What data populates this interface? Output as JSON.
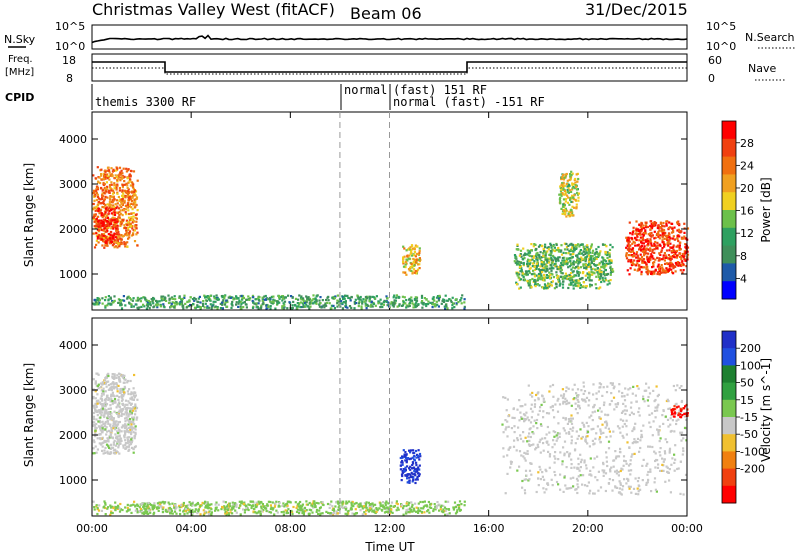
{
  "header": {
    "station": "Christmas Valley West (fitACF)",
    "beam": "Beam 06",
    "date": "31/Dec/2015"
  },
  "strip_labels": {
    "nsky": "N.Sky",
    "nsky_tick_hi": "10^5",
    "nsky_tick_lo": "10^0",
    "nsearch": "N.Search",
    "nsearch_tick_hi": "10^5",
    "nsearch_tick_lo": "10^0",
    "freq_line1": "Freq.",
    "freq_line2": "[MHz]",
    "freq_tick_hi": "18",
    "freq_tick_lo": "8",
    "nave": "Nave",
    "nave_tick_hi": "60",
    "nave_tick_lo": "0",
    "cpid": "CPID"
  },
  "cpid_segments": [
    {
      "start_hour": 0,
      "label": "themis 3300 RF"
    },
    {
      "start_hour": 10,
      "label": "normal"
    },
    {
      "start_hour": 12,
      "label": "(fast) 151 RF"
    },
    {
      "start_hour": 12,
      "label": "normal (fast) -151 RF"
    }
  ],
  "chart_data": [
    {
      "type": "heatmap",
      "panel": "power",
      "ylabel": "Slant Range [km]",
      "ylim": [
        200,
        4600
      ],
      "y_ticks": [
        "1000",
        "2000",
        "3000",
        "4000"
      ],
      "x_ticks": [
        "00:00",
        "04:00",
        "08:00",
        "12:00",
        "16:00",
        "20:00",
        "00:00"
      ],
      "xlim_hours": [
        0,
        24
      ],
      "colorbar": {
        "label": "Power [dB]",
        "ticks": [
          "4",
          "8",
          "12",
          "16",
          "20",
          "24",
          "28"
        ],
        "range": [
          0,
          30
        ],
        "colors": [
          "#0000ff",
          "#1e5aa8",
          "#3f8f5a",
          "#2ea060",
          "#6cc04a",
          "#f0d020",
          "#f0a020",
          "#f07010",
          "#f04010",
          "#ff0000"
        ]
      },
      "regions": [
        {
          "hours": [
            0.0,
            1.8
          ],
          "range_km": [
            1600,
            3400
          ],
          "power_db": 22
        },
        {
          "hours": [
            0.1,
            1.0
          ],
          "range_km": [
            1700,
            2500
          ],
          "power_db": 28
        },
        {
          "hours": [
            12.5,
            13.2
          ],
          "range_km": [
            1000,
            1700
          ],
          "power_db": 18
        },
        {
          "hours": [
            18.8,
            19.6
          ],
          "range_km": [
            2300,
            3300
          ],
          "power_db": 16
        },
        {
          "hours": [
            21.5,
            24.0
          ],
          "range_km": [
            1000,
            2200
          ],
          "power_db": 26
        },
        {
          "hours": [
            17.0,
            21.0
          ],
          "range_km": [
            700,
            1700
          ],
          "power_db": 12
        },
        {
          "hours": [
            0.0,
            15.0
          ],
          "range_km": [
            250,
            550
          ],
          "power_db": 10
        }
      ]
    },
    {
      "type": "heatmap",
      "panel": "velocity",
      "ylabel": "Slant Range [km]",
      "ylim": [
        200,
        4600
      ],
      "y_ticks": [
        "1000",
        "2000",
        "3000",
        "4000"
      ],
      "x_ticks": [
        "00:00",
        "04:00",
        "08:00",
        "12:00",
        "16:00",
        "20:00",
        "00:00"
      ],
      "xlabel": "Time UT",
      "xlim_hours": [
        0,
        24
      ],
      "colorbar": {
        "label": "Velocity [m s^-1]",
        "ticks": [
          "200",
          "100",
          "50",
          "15",
          "-15",
          "-50",
          "-100",
          "-200"
        ],
        "colors": [
          "#2030c8",
          "#2050e0",
          "#1e8030",
          "#30a040",
          "#7ac850",
          "#c8c8c8",
          "#f0c030",
          "#f08010",
          "#f04010",
          "#ff0000"
        ]
      },
      "regions": [
        {
          "hours": [
            0.0,
            1.8
          ],
          "range_km": [
            1600,
            3400
          ],
          "velocity_ms": 0
        },
        {
          "hours": [
            12.4,
            13.2
          ],
          "range_km": [
            950,
            1700
          ],
          "velocity_ms": 200
        },
        {
          "hours": [
            16.5,
            24.0
          ],
          "range_km": [
            700,
            3200
          ],
          "velocity_ms": 0
        },
        {
          "hours": [
            23.3,
            24.0
          ],
          "range_km": [
            2400,
            2700
          ],
          "velocity_ms": -150
        },
        {
          "hours": [
            0.0,
            15.0
          ],
          "range_km": [
            250,
            550
          ],
          "velocity_ms": 40
        }
      ]
    }
  ]
}
